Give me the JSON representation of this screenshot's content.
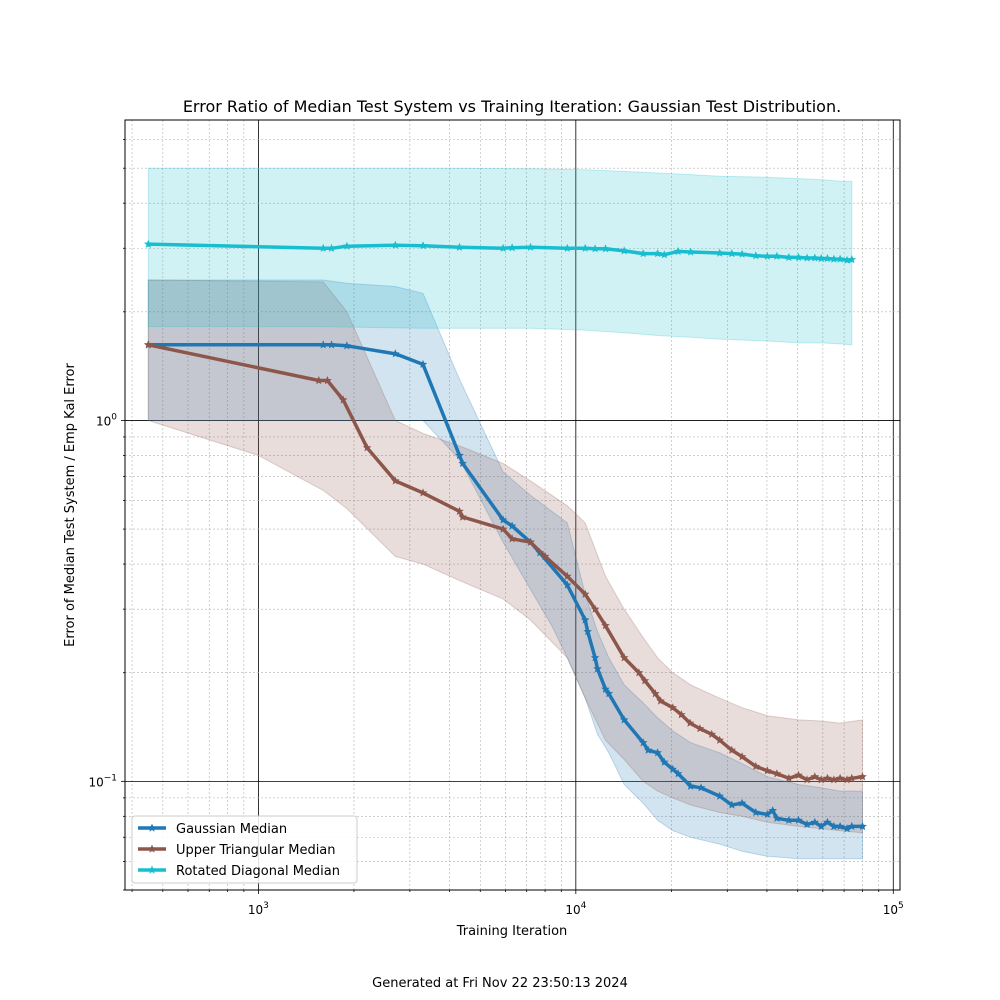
{
  "chart_data": {
    "type": "line",
    "title": "Error Ratio of Median Test System vs Training Iteration: Gaussian Test Distribution.",
    "xlabel": "Training Iteration",
    "ylabel": "Error of Median Test System / Emp Kal Error",
    "xscale": "log",
    "yscale": "log",
    "xlim": [
      380,
      105000
    ],
    "ylim": [
      0.05,
      6.8
    ],
    "x_major_ticks": [
      1000,
      10000,
      100000
    ],
    "x_tick_labels": [
      {
        "base": "10",
        "exp": "3"
      },
      {
        "base": "10",
        "exp": "4"
      },
      {
        "base": "10",
        "exp": "5"
      }
    ],
    "y_major_ticks": [
      0.1,
      1.0
    ],
    "y_tick_labels": [
      {
        "base": "10",
        "exp": "−1"
      },
      {
        "base": "10",
        "exp": "0"
      }
    ],
    "grid": true,
    "legend_position": "bottom-left",
    "series": [
      {
        "name": "Gaussian Median",
        "color": "#1f77b4",
        "points": [
          [
            450,
            1.62
          ],
          [
            1600,
            1.62
          ],
          [
            1700,
            1.62
          ],
          [
            1900,
            1.61
          ],
          [
            2700,
            1.53
          ],
          [
            3300,
            1.43
          ],
          [
            4300,
            0.8
          ],
          [
            4400,
            0.76
          ],
          [
            5900,
            0.53
          ],
          [
            6300,
            0.51
          ],
          [
            7200,
            0.46
          ],
          [
            7700,
            0.43
          ],
          [
            9400,
            0.35
          ],
          [
            10700,
            0.28
          ],
          [
            10900,
            0.26
          ],
          [
            11500,
            0.22
          ],
          [
            11700,
            0.205
          ],
          [
            12400,
            0.18
          ],
          [
            12700,
            0.175
          ],
          [
            14200,
            0.148
          ],
          [
            16300,
            0.128
          ],
          [
            16900,
            0.122
          ],
          [
            18100,
            0.12
          ],
          [
            19000,
            0.113
          ],
          [
            20200,
            0.108
          ],
          [
            21000,
            0.105
          ],
          [
            23000,
            0.097
          ],
          [
            24800,
            0.096
          ],
          [
            28400,
            0.091
          ],
          [
            31000,
            0.086
          ],
          [
            33400,
            0.087
          ],
          [
            36900,
            0.082
          ],
          [
            40100,
            0.081
          ],
          [
            41700,
            0.083
          ],
          [
            43000,
            0.079
          ],
          [
            46900,
            0.078
          ],
          [
            50300,
            0.078
          ],
          [
            53500,
            0.076
          ],
          [
            56600,
            0.077
          ],
          [
            59300,
            0.075
          ],
          [
            62000,
            0.077
          ],
          [
            65000,
            0.075
          ],
          [
            68000,
            0.075
          ],
          [
            71500,
            0.074
          ],
          [
            74000,
            0.075
          ],
          [
            80000,
            0.075
          ]
        ],
        "band_lower": [
          [
            450,
            1.0
          ],
          [
            1600,
            1.0
          ],
          [
            1900,
            1.0
          ],
          [
            2700,
            1.0
          ],
          [
            3300,
            1.0
          ],
          [
            4300,
            0.78
          ],
          [
            5900,
            0.46
          ],
          [
            7200,
            0.34
          ],
          [
            8400,
            0.27
          ],
          [
            9400,
            0.22
          ],
          [
            10700,
            0.17
          ],
          [
            11700,
            0.135
          ],
          [
            12700,
            0.12
          ],
          [
            14200,
            0.098
          ],
          [
            16300,
            0.087
          ],
          [
            18100,
            0.078
          ],
          [
            20200,
            0.073
          ],
          [
            23000,
            0.07
          ],
          [
            28400,
            0.067
          ],
          [
            33400,
            0.064
          ],
          [
            40100,
            0.062
          ],
          [
            50300,
            0.061
          ],
          [
            59300,
            0.061
          ],
          [
            68000,
            0.061
          ],
          [
            80000,
            0.061
          ]
        ],
        "band_upper": [
          [
            450,
            2.45
          ],
          [
            1600,
            2.45
          ],
          [
            1900,
            2.4
          ],
          [
            2700,
            2.35
          ],
          [
            3300,
            2.25
          ],
          [
            4300,
            1.3
          ],
          [
            5900,
            0.72
          ],
          [
            7200,
            0.62
          ],
          [
            8400,
            0.56
          ],
          [
            9400,
            0.52
          ],
          [
            10700,
            0.33
          ],
          [
            11700,
            0.26
          ],
          [
            12700,
            0.22
          ],
          [
            14200,
            0.185
          ],
          [
            16300,
            0.165
          ],
          [
            18100,
            0.15
          ],
          [
            20200,
            0.138
          ],
          [
            23000,
            0.128
          ],
          [
            28400,
            0.12
          ],
          [
            33400,
            0.112
          ],
          [
            40100,
            0.103
          ],
          [
            50300,
            0.098
          ],
          [
            59300,
            0.096
          ],
          [
            68000,
            0.094
          ],
          [
            80000,
            0.094
          ]
        ]
      },
      {
        "name": "Upper Triangular Median",
        "color": "#8c564b",
        "points": [
          [
            450,
            1.62
          ],
          [
            1550,
            1.29
          ],
          [
            1650,
            1.29
          ],
          [
            1850,
            1.14
          ],
          [
            2200,
            0.84
          ],
          [
            2700,
            0.68
          ],
          [
            3300,
            0.63
          ],
          [
            4300,
            0.56
          ],
          [
            4400,
            0.54
          ],
          [
            5900,
            0.5
          ],
          [
            6300,
            0.47
          ],
          [
            7200,
            0.46
          ],
          [
            8000,
            0.42
          ],
          [
            9400,
            0.37
          ],
          [
            10700,
            0.33
          ],
          [
            11500,
            0.3
          ],
          [
            12400,
            0.27
          ],
          [
            14200,
            0.22
          ],
          [
            15800,
            0.2
          ],
          [
            16500,
            0.19
          ],
          [
            17800,
            0.175
          ],
          [
            18500,
            0.167
          ],
          [
            20200,
            0.16
          ],
          [
            21500,
            0.153
          ],
          [
            22900,
            0.145
          ],
          [
            24600,
            0.14
          ],
          [
            26800,
            0.135
          ],
          [
            28400,
            0.13
          ],
          [
            31000,
            0.122
          ],
          [
            33400,
            0.117
          ],
          [
            36900,
            0.11
          ],
          [
            40100,
            0.107
          ],
          [
            43000,
            0.105
          ],
          [
            46900,
            0.102
          ],
          [
            50300,
            0.104
          ],
          [
            53500,
            0.101
          ],
          [
            56600,
            0.103
          ],
          [
            59300,
            0.101
          ],
          [
            62000,
            0.102
          ],
          [
            65000,
            0.101
          ],
          [
            68000,
            0.102
          ],
          [
            71500,
            0.101
          ],
          [
            74000,
            0.102
          ],
          [
            80000,
            0.103
          ]
        ],
        "band_lower": [
          [
            450,
            1.0
          ],
          [
            1000,
            0.8
          ],
          [
            1600,
            0.64
          ],
          [
            1900,
            0.57
          ],
          [
            2700,
            0.42
          ],
          [
            3300,
            0.4
          ],
          [
            4300,
            0.36
          ],
          [
            5900,
            0.32
          ],
          [
            7200,
            0.28
          ],
          [
            9400,
            0.22
          ],
          [
            10700,
            0.17
          ],
          [
            12400,
            0.13
          ],
          [
            14200,
            0.115
          ],
          [
            16300,
            0.1
          ],
          [
            18100,
            0.094
          ],
          [
            20200,
            0.09
          ],
          [
            23000,
            0.086
          ],
          [
            28400,
            0.082
          ],
          [
            33400,
            0.08
          ],
          [
            40100,
            0.077
          ],
          [
            50300,
            0.075
          ],
          [
            59300,
            0.074
          ],
          [
            68000,
            0.073
          ],
          [
            80000,
            0.072
          ]
        ],
        "band_upper": [
          [
            450,
            2.45
          ],
          [
            1600,
            2.42
          ],
          [
            1900,
            2.0
          ],
          [
            2700,
            1.0
          ],
          [
            3300,
            0.92
          ],
          [
            4300,
            0.85
          ],
          [
            5900,
            0.76
          ],
          [
            7200,
            0.68
          ],
          [
            9400,
            0.58
          ],
          [
            10700,
            0.52
          ],
          [
            12400,
            0.37
          ],
          [
            14200,
            0.3
          ],
          [
            16300,
            0.25
          ],
          [
            18100,
            0.22
          ],
          [
            20200,
            0.2
          ],
          [
            23000,
            0.185
          ],
          [
            28400,
            0.17
          ],
          [
            33400,
            0.16
          ],
          [
            40100,
            0.152
          ],
          [
            50300,
            0.148
          ],
          [
            59300,
            0.147
          ],
          [
            68000,
            0.145
          ],
          [
            80000,
            0.148
          ]
        ]
      },
      {
        "name": "Rotated Diagonal Median",
        "color": "#17becf",
        "points": [
          [
            450,
            3.08
          ],
          [
            1600,
            3.0
          ],
          [
            1700,
            3.0
          ],
          [
            1900,
            3.04
          ],
          [
            2700,
            3.06
          ],
          [
            3300,
            3.05
          ],
          [
            4300,
            3.02
          ],
          [
            5900,
            3.0
          ],
          [
            6300,
            3.01
          ],
          [
            7200,
            3.02
          ],
          [
            9400,
            3.0
          ],
          [
            10700,
            3.0
          ],
          [
            11500,
            2.99
          ],
          [
            12400,
            2.99
          ],
          [
            14200,
            2.95
          ],
          [
            16300,
            2.9
          ],
          [
            18100,
            2.9
          ],
          [
            19000,
            2.88
          ],
          [
            21000,
            2.94
          ],
          [
            23000,
            2.93
          ],
          [
            28400,
            2.91
          ],
          [
            31000,
            2.9
          ],
          [
            33400,
            2.89
          ],
          [
            36900,
            2.86
          ],
          [
            40100,
            2.85
          ],
          [
            43000,
            2.85
          ],
          [
            46900,
            2.83
          ],
          [
            50300,
            2.83
          ],
          [
            53500,
            2.82
          ],
          [
            56600,
            2.82
          ],
          [
            59300,
            2.81
          ],
          [
            62000,
            2.81
          ],
          [
            65000,
            2.8
          ],
          [
            68000,
            2.8
          ],
          [
            71500,
            2.78
          ],
          [
            74000,
            2.79
          ]
        ],
        "band_lower": [
          [
            450,
            1.82
          ],
          [
            1600,
            1.82
          ],
          [
            3300,
            1.8
          ],
          [
            7200,
            1.8
          ],
          [
            10700,
            1.78
          ],
          [
            14200,
            1.75
          ],
          [
            18100,
            1.72
          ],
          [
            23000,
            1.7
          ],
          [
            28400,
            1.68
          ],
          [
            40100,
            1.66
          ],
          [
            50300,
            1.64
          ],
          [
            59300,
            1.64
          ],
          [
            68000,
            1.63
          ],
          [
            74000,
            1.62
          ]
        ],
        "band_upper": [
          [
            450,
            5.0
          ],
          [
            1600,
            5.0
          ],
          [
            3300,
            5.0
          ],
          [
            7200,
            4.98
          ],
          [
            10700,
            4.95
          ],
          [
            14200,
            4.9
          ],
          [
            18100,
            4.85
          ],
          [
            23000,
            4.8
          ],
          [
            28400,
            4.75
          ],
          [
            40100,
            4.72
          ],
          [
            50300,
            4.68
          ],
          [
            59300,
            4.65
          ],
          [
            68000,
            4.6
          ],
          [
            74000,
            4.6
          ]
        ]
      }
    ]
  },
  "footer": {
    "generated": "Generated at Fri Nov 22 23:50:13 2024"
  }
}
